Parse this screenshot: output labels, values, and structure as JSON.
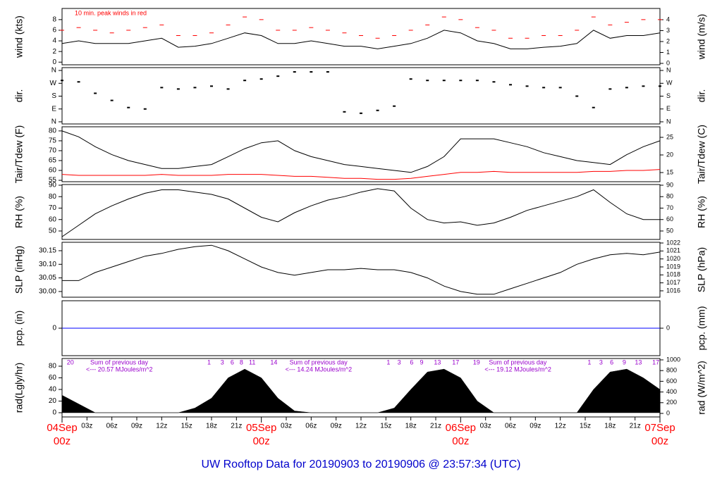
{
  "title": "UW Rooftop Data for 20190903  to  20190906 @ 23:57:34  (UTC)",
  "xlim": [
    0,
    72
  ],
  "xticks": [
    {
      "value": 3,
      "label": "03z"
    },
    {
      "value": 6,
      "label": "06z"
    },
    {
      "value": 9,
      "label": "09z"
    },
    {
      "value": 12,
      "label": "12z"
    },
    {
      "value": 15,
      "label": "15z"
    },
    {
      "value": 18,
      "label": "18z"
    },
    {
      "value": 21,
      "label": "21z"
    },
    {
      "value": 27,
      "label": "03z"
    },
    {
      "value": 30,
      "label": "06z"
    },
    {
      "value": 33,
      "label": "09z"
    },
    {
      "value": 36,
      "label": "12z"
    },
    {
      "value": 39,
      "label": "15z"
    },
    {
      "value": 42,
      "label": "18z"
    },
    {
      "value": 45,
      "label": "21z"
    },
    {
      "value": 51,
      "label": "03z"
    },
    {
      "value": 54,
      "label": "06z"
    },
    {
      "value": 57,
      "label": "09z"
    },
    {
      "value": 60,
      "label": "12z"
    },
    {
      "value": 63,
      "label": "15z"
    },
    {
      "value": 66,
      "label": "18z"
    },
    {
      "value": 69,
      "label": "21z"
    }
  ],
  "x_major_ticks": [
    {
      "value": 0,
      "label": "04Sep",
      "sublabel": "00z"
    },
    {
      "value": 24,
      "label": "05Sep",
      "sublabel": "00z"
    },
    {
      "value": 48,
      "label": "06Sep",
      "sublabel": "00z"
    },
    {
      "value": 72,
      "label": "07Sep",
      "sublabel": "00z"
    }
  ],
  "chart_data": [
    {
      "type": "line",
      "ylabel": "wind (kts)",
      "y2label": "wind (m/s)",
      "annotation": "10 min. peak winds in red",
      "ylim": [
        -0.5,
        10.1
      ],
      "yticks": [
        0,
        2,
        4,
        6,
        8
      ],
      "y2lim": [
        -0.13,
        5.03
      ],
      "y2ticks": [
        0,
        1,
        2,
        3,
        4
      ],
      "x": [
        0,
        2,
        4,
        6,
        8,
        10,
        12,
        14,
        16,
        18,
        20,
        22,
        24,
        26,
        28,
        30,
        32,
        34,
        36,
        38,
        40,
        42,
        44,
        46,
        48,
        50,
        52,
        54,
        56,
        58,
        60,
        62,
        64,
        66,
        68,
        70,
        72
      ],
      "series": [
        {
          "color": "#000000",
          "values": [
            3.5,
            4,
            3.5,
            3.5,
            3.5,
            4,
            4.5,
            2.8,
            3,
            3.5,
            4.5,
            5.5,
            5,
            3.5,
            3.5,
            4,
            3.5,
            3,
            3,
            2.5,
            3,
            3.5,
            4.5,
            6,
            5.5,
            4,
            3.5,
            2.5,
            2.5,
            2.8,
            3,
            3.5,
            6,
            4.5,
            5,
            5,
            5.5
          ]
        },
        {
          "color": "#ff0000",
          "marker": "dash",
          "values": [
            6,
            6.5,
            6,
            5.5,
            6,
            6.5,
            7,
            5,
            5,
            5.5,
            7,
            8.5,
            8,
            6,
            6,
            6.5,
            6,
            5.5,
            5,
            4.5,
            5,
            6,
            7,
            8.5,
            8,
            6.5,
            6,
            4.5,
            4.5,
            5,
            5,
            6,
            8.5,
            7,
            7.5,
            8,
            8
          ]
        }
      ]
    },
    {
      "type": "scatter",
      "ylabel": "dir.",
      "y2label": "dir.",
      "ylim": [
        -15,
        380
      ],
      "yticks": [
        {
          "value": 360,
          "label": "N"
        },
        {
          "value": 270,
          "label": "W"
        },
        {
          "value": 180,
          "label": "S"
        },
        {
          "value": 90,
          "label": "E"
        },
        {
          "value": 0,
          "label": "N"
        }
      ],
      "y2lim": [
        -15,
        380
      ],
      "y2ticks": [
        {
          "value": 360,
          "label": "N"
        },
        {
          "value": 270,
          "label": "W"
        },
        {
          "value": 180,
          "label": "S"
        },
        {
          "value": 90,
          "label": "E"
        },
        {
          "value": 0,
          "label": "N"
        }
      ],
      "x": [
        0,
        2,
        4,
        6,
        8,
        10,
        12,
        14,
        16,
        18,
        20,
        22,
        24,
        26,
        28,
        30,
        32,
        34,
        36,
        38,
        40,
        42,
        44,
        46,
        48,
        50,
        52,
        54,
        56,
        58,
        60,
        62,
        64,
        66,
        68,
        70,
        72
      ],
      "series": [
        {
          "color": "#000000",
          "values": [
            290,
            280,
            200,
            150,
            100,
            90,
            240,
            230,
            240,
            250,
            230,
            290,
            300,
            320,
            350,
            350,
            350,
            70,
            60,
            80,
            110,
            300,
            290,
            290,
            290,
            290,
            280,
            260,
            250,
            240,
            240,
            180,
            100,
            230,
            240,
            250,
            250
          ]
        }
      ]
    },
    {
      "type": "line",
      "ylabel": "Tair/Tdew (F)",
      "y2label": "Tair/Tdew (C)",
      "ylim": [
        54.3,
        82.1
      ],
      "yticks": [
        55,
        60,
        65,
        70,
        75,
        80
      ],
      "y2lim": [
        12.4,
        28
      ],
      "y2ticks": [
        15,
        20,
        25
      ],
      "x": [
        0,
        2,
        4,
        6,
        8,
        10,
        12,
        14,
        16,
        18,
        20,
        22,
        24,
        26,
        28,
        30,
        32,
        34,
        36,
        38,
        40,
        42,
        44,
        46,
        48,
        50,
        52,
        54,
        56,
        58,
        60,
        62,
        64,
        66,
        68,
        70,
        72
      ],
      "series": [
        {
          "color": "#000000",
          "values": [
            80,
            77,
            72,
            68,
            65,
            63,
            61,
            61,
            62,
            63,
            67,
            71,
            74,
            75,
            70,
            67,
            65,
            63,
            62,
            61,
            60,
            59,
            62,
            67,
            76,
            76,
            76,
            74,
            72,
            69,
            67,
            65,
            64,
            63,
            68,
            72,
            75
          ]
        },
        {
          "color": "#ff0000",
          "values": [
            58,
            57.5,
            57.5,
            57.5,
            57.5,
            57.5,
            58,
            57.5,
            57.5,
            57.5,
            58,
            58,
            58,
            57.5,
            57,
            57,
            56.5,
            56,
            56,
            55.5,
            55.5,
            56,
            57,
            58,
            59,
            59,
            59.5,
            59,
            59,
            59,
            59,
            59,
            59.5,
            59.5,
            60,
            60,
            60.5
          ]
        }
      ]
    },
    {
      "type": "line",
      "ylabel": "RH (%)",
      "y2label": "RH (%)",
      "ylim": [
        42.6,
        90.6
      ],
      "yticks": [
        50,
        60,
        70,
        80,
        90
      ],
      "y2lim": [
        42.6,
        90.6
      ],
      "y2ticks": [
        50,
        60,
        70,
        80,
        90
      ],
      "x": [
        0,
        2,
        4,
        6,
        8,
        10,
        12,
        14,
        16,
        18,
        20,
        22,
        24,
        26,
        28,
        30,
        32,
        34,
        36,
        38,
        40,
        42,
        44,
        46,
        48,
        50,
        52,
        54,
        56,
        58,
        60,
        62,
        64,
        66,
        68,
        70,
        72
      ],
      "series": [
        {
          "color": "#000000",
          "values": [
            45,
            55,
            65,
            72,
            78,
            83,
            86,
            86,
            84,
            82,
            78,
            70,
            62,
            58,
            66,
            72,
            77,
            80,
            84,
            87,
            85,
            70,
            60,
            57,
            58,
            55,
            57,
            62,
            68,
            72,
            76,
            80,
            86,
            75,
            65,
            60,
            60
          ]
        }
      ]
    },
    {
      "type": "line",
      "ylabel": "SLP (inHg)",
      "y2label": "SLP (hPa)",
      "ylim": [
        29.979,
        30.181
      ],
      "yticks": [
        {
          "value": 30.0,
          "label": "30.00"
        },
        30.05,
        {
          "value": 30.1,
          "label": "30.10"
        },
        30.15
      ],
      "y2lim": [
        1015.2,
        1022.09
      ],
      "y2ticks": [
        1016,
        1017,
        1018,
        1019,
        1020,
        1021,
        1022
      ],
      "x": [
        0,
        2,
        4,
        6,
        8,
        10,
        12,
        14,
        16,
        18,
        20,
        22,
        24,
        26,
        28,
        30,
        32,
        34,
        36,
        38,
        40,
        42,
        44,
        46,
        48,
        50,
        52,
        54,
        56,
        58,
        60,
        62,
        64,
        66,
        68,
        70,
        72
      ],
      "series": [
        {
          "color": "#000000",
          "values": [
            30.04,
            30.04,
            30.07,
            30.09,
            30.11,
            30.13,
            30.14,
            30.155,
            30.165,
            30.17,
            30.15,
            30.12,
            30.09,
            30.07,
            30.06,
            30.07,
            30.08,
            30.08,
            30.085,
            30.08,
            30.08,
            30.07,
            30.05,
            30.02,
            30.0,
            29.99,
            29.99,
            30.01,
            30.03,
            30.05,
            30.07,
            30.1,
            30.12,
            30.135,
            30.14,
            30.135,
            30.145
          ]
        }
      ]
    },
    {
      "type": "line",
      "ylabel": "pcp. (in)",
      "y2label": "pcp. (mm)",
      "ylim": [
        -1,
        1
      ],
      "yticks": [
        0
      ],
      "y2lim": [
        -1,
        1
      ],
      "y2ticks": [
        0
      ],
      "x": [
        0,
        72
      ],
      "series": [
        {
          "color": "#0000ff",
          "values": [
            0,
            0
          ]
        }
      ]
    },
    {
      "type": "area",
      "ylabel": "rad(Lgly/hr)",
      "y2label": "rad (W/m^2)",
      "ylim": [
        -7.3,
        93.3
      ],
      "yticks": [
        0,
        20,
        40,
        60,
        80
      ],
      "y2lim": [
        -66,
        1026
      ],
      "y2ticks": [
        0,
        200,
        400,
        600,
        800,
        1000
      ],
      "hour_marks": [
        {
          "value": 1.0,
          "label": "20"
        },
        {
          "value": 17.7,
          "label": "1"
        },
        {
          "value": 19.3,
          "label": "3"
        },
        {
          "value": 20.5,
          "label": "6"
        },
        {
          "value": 21.6,
          "label": "8"
        },
        {
          "value": 22.9,
          "label": "11"
        },
        {
          "value": 25.5,
          "label": "14"
        },
        {
          "value": 39.3,
          "label": "1"
        },
        {
          "value": 40.6,
          "label": "3"
        },
        {
          "value": 42.1,
          "label": "6"
        },
        {
          "value": 43.3,
          "label": "9"
        },
        {
          "value": 45.2,
          "label": "13"
        },
        {
          "value": 47.4,
          "label": "17"
        },
        {
          "value": 49.9,
          "label": "19"
        },
        {
          "value": 63.5,
          "label": "1"
        },
        {
          "value": 64.9,
          "label": "3"
        },
        {
          "value": 66.2,
          "label": "6"
        },
        {
          "value": 67.7,
          "label": "9"
        },
        {
          "value": 69.4,
          "label": "13"
        },
        {
          "value": 71.5,
          "label": "17"
        }
      ],
      "daily_sums": [
        {
          "label": "Sum of previous day",
          "sum_label": "<--- 20.57 MJoules/m^2"
        },
        {
          "label": "Sum of previous day",
          "sum_label": "<--- 14.24 MJoules/m^2"
        },
        {
          "label": "Sum of previous day",
          "sum_label": "<--- 19.12 MJoules/m^2"
        }
      ],
      "x": [
        0,
        2,
        4,
        6,
        8,
        10,
        12,
        14,
        16,
        18,
        20,
        22,
        24,
        26,
        28,
        30,
        32,
        34,
        36,
        38,
        40,
        42,
        44,
        46,
        48,
        50,
        52,
        54,
        56,
        58,
        60,
        62,
        64,
        66,
        68,
        70,
        72
      ],
      "series": [
        {
          "color": "#000000",
          "values": [
            30,
            15,
            0,
            0,
            0,
            0,
            0,
            0,
            8,
            25,
            60,
            75,
            60,
            25,
            3,
            0,
            0,
            0,
            0,
            0,
            8,
            40,
            70,
            75,
            60,
            20,
            0,
            0,
            0,
            0,
            0,
            0,
            40,
            70,
            75,
            60,
            40
          ]
        }
      ]
    }
  ]
}
